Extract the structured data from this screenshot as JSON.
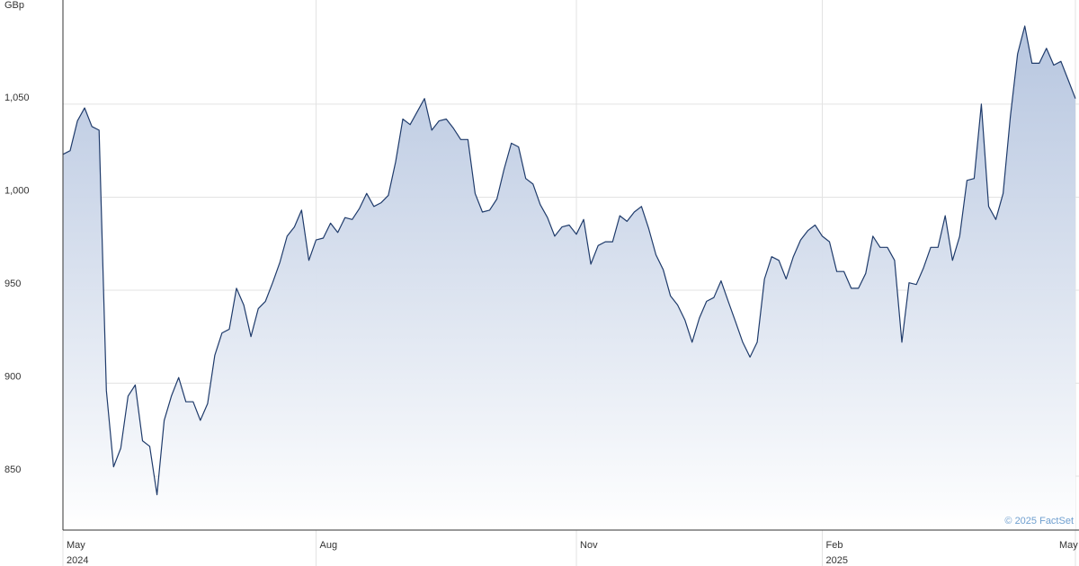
{
  "chart_data": {
    "type": "area",
    "y_label": "GBp",
    "credit": "© 2025 FactSet",
    "categories": [
      "May",
      null,
      null,
      null,
      null,
      null,
      null,
      null,
      null,
      null,
      null,
      null,
      null,
      null,
      null,
      null,
      null,
      null,
      null,
      null,
      null,
      null,
      null,
      null,
      null,
      null,
      null,
      null,
      null,
      null,
      null,
      null,
      null,
      null,
      null,
      "Aug",
      null,
      null,
      null,
      null,
      null,
      null,
      null,
      null,
      null,
      null,
      null,
      null,
      null,
      null,
      null,
      null,
      null,
      null,
      null,
      null,
      null,
      null,
      null,
      null,
      null,
      null,
      null,
      null,
      null,
      null,
      null,
      null,
      null,
      null,
      null,
      "Nov",
      null,
      null,
      null,
      null,
      null,
      null,
      null,
      null,
      null,
      null,
      null,
      null,
      null,
      null,
      null,
      null,
      null,
      null,
      null,
      null,
      null,
      null,
      null,
      null,
      null,
      null,
      null,
      null,
      null,
      null,
      null,
      null,
      null,
      "Feb",
      null,
      null,
      null,
      null,
      null,
      null,
      null,
      null,
      null,
      null,
      null,
      null,
      null,
      null,
      null,
      null,
      null,
      null,
      null,
      null,
      null,
      null,
      null,
      null,
      null,
      null,
      null,
      null,
      null,
      null,
      null,
      null,
      null,
      null,
      "May"
    ],
    "year_labels": [
      "2024",
      null,
      null,
      null,
      null,
      null,
      null,
      null,
      null,
      null,
      null,
      null,
      null,
      null,
      null,
      null,
      null,
      null,
      null,
      null,
      null,
      null,
      null,
      null,
      null,
      null,
      null,
      null,
      null,
      null,
      null,
      null,
      null,
      null,
      null,
      null,
      null,
      null,
      null,
      null,
      null,
      null,
      null,
      null,
      null,
      null,
      null,
      null,
      null,
      null,
      null,
      null,
      null,
      null,
      null,
      null,
      null,
      null,
      null,
      null,
      null,
      null,
      null,
      null,
      null,
      null,
      null,
      null,
      null,
      null,
      null,
      null,
      null,
      null,
      null,
      null,
      null,
      null,
      null,
      null,
      null,
      null,
      null,
      null,
      null,
      null,
      null,
      null,
      null,
      null,
      null,
      null,
      null,
      null,
      null,
      null,
      null,
      null,
      null,
      null,
      null,
      null,
      null,
      null,
      null,
      "2025",
      null,
      null,
      null,
      null,
      null,
      null,
      null,
      null,
      null,
      null,
      null,
      null,
      null,
      null,
      null,
      null,
      null,
      null,
      null,
      null,
      null,
      null,
      null,
      null,
      null,
      null,
      null,
      null,
      null,
      null,
      null,
      null,
      null,
      null,
      null
    ],
    "values": [
      1023,
      1025,
      1041,
      1048,
      1038,
      1036,
      896,
      855,
      865,
      893,
      899,
      869,
      866,
      840,
      880,
      893,
      903,
      890,
      890,
      880,
      889,
      915,
      927,
      929,
      951,
      942,
      925,
      940,
      944,
      954,
      965,
      979,
      984,
      993,
      966,
      977,
      978,
      986,
      981,
      989,
      988,
      994,
      1002,
      995,
      997,
      1001,
      1019,
      1042,
      1039,
      1046,
      1053,
      1036,
      1041,
      1042,
      1037,
      1031,
      1031,
      1002,
      992,
      993,
      999,
      1015,
      1029,
      1027,
      1010,
      1007,
      996,
      989,
      979,
      984,
      985,
      980,
      988,
      964,
      974,
      976,
      976,
      990,
      987,
      992,
      995,
      983,
      969,
      961,
      947,
      942,
      934,
      922,
      935,
      944,
      946,
      955,
      944,
      933,
      922,
      914,
      922,
      956,
      968,
      966,
      956,
      968,
      977,
      982,
      985,
      979,
      976,
      960,
      960,
      951,
      951,
      959,
      979,
      973,
      973,
      966,
      922,
      954,
      953,
      962,
      973,
      973,
      990,
      966,
      979,
      1009,
      1010,
      1050,
      995,
      988,
      1002,
      1043,
      1077,
      1092,
      1072,
      1072,
      1080,
      1071,
      1073,
      1063,
      1053
    ],
    "color": "#1f3b6b",
    "area_color": "#b3c3de",
    "ylim": [
      821,
      1106
    ],
    "yticks": [
      850,
      900,
      950,
      {
        "value": 1000,
        "label": "1,000"
      },
      {
        "value": 1050,
        "label": "1,050"
      }
    ],
    "grid": true
  }
}
